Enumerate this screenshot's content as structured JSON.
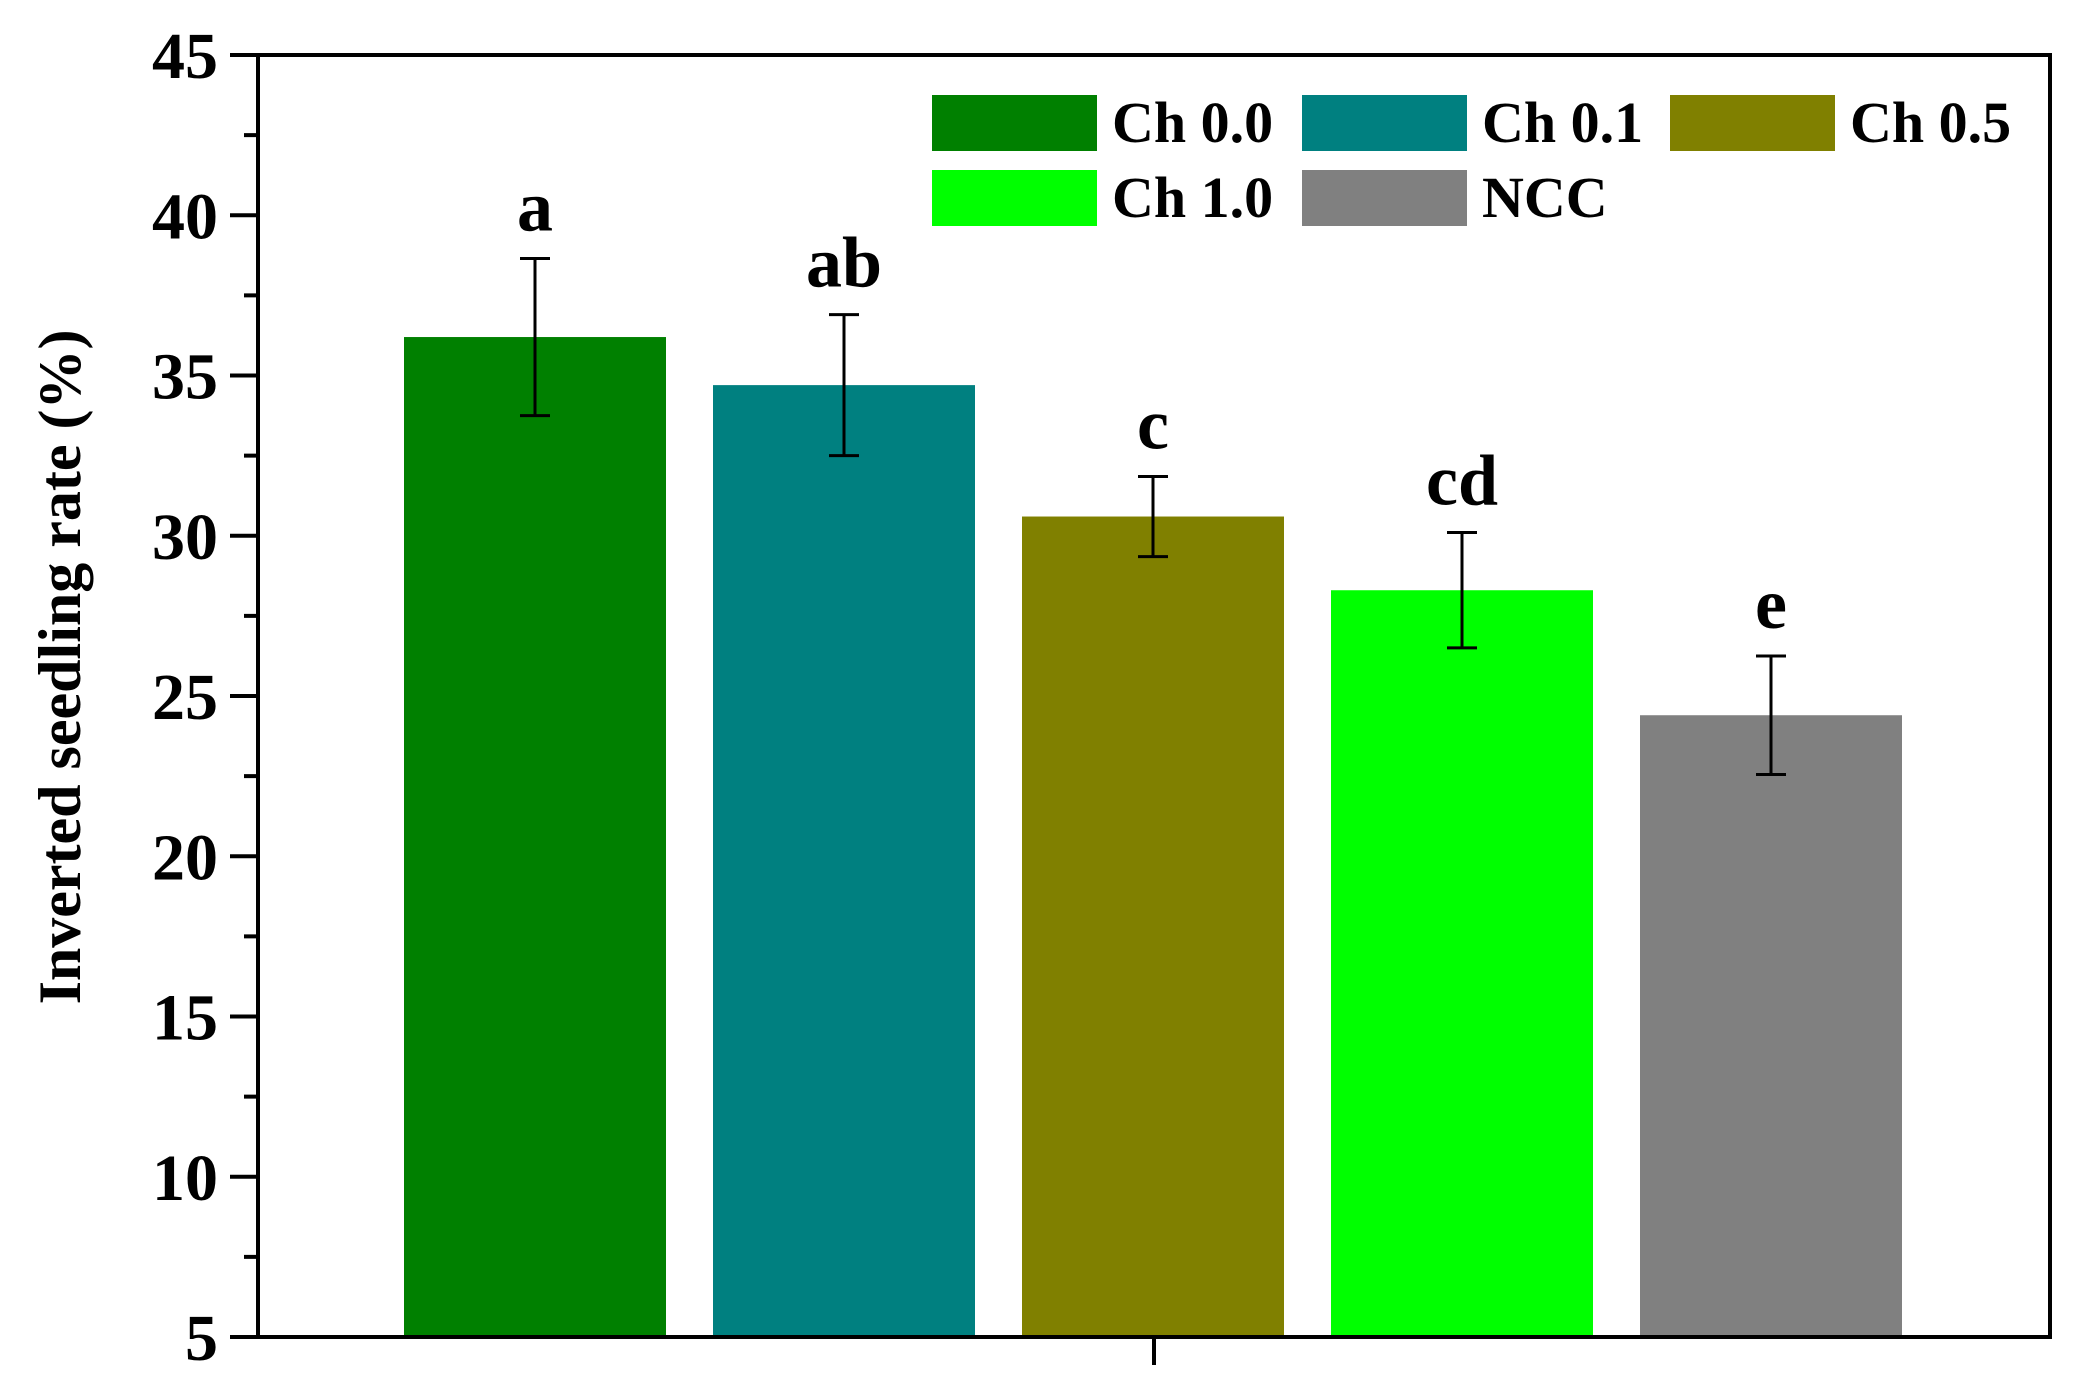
{
  "chart_data": {
    "type": "bar",
    "xlabel": "",
    "ylabel": "Inverted seedling rate (%)",
    "ylim": [
      5,
      45
    ],
    "yticks": [
      5,
      10,
      15,
      20,
      25,
      30,
      35,
      40,
      45
    ],
    "grid": false,
    "legend_position": "top-right",
    "series": [
      {
        "name": "Ch 0.0",
        "value": 36.2,
        "error": 2.45,
        "significance": "a",
        "color": "#008000"
      },
      {
        "name": "Ch 0.1",
        "value": 34.7,
        "error": 2.2,
        "significance": "ab",
        "color": "#008080"
      },
      {
        "name": "Ch 0.5",
        "value": 30.6,
        "error": 1.25,
        "significance": "c",
        "color": "#808000"
      },
      {
        "name": "Ch 1.0",
        "value": 28.3,
        "error": 1.8,
        "significance": "cd",
        "color": "#00ff00"
      },
      {
        "name": "NCC",
        "value": 24.4,
        "error": 1.85,
        "significance": "e",
        "color": "#808080"
      }
    ]
  }
}
